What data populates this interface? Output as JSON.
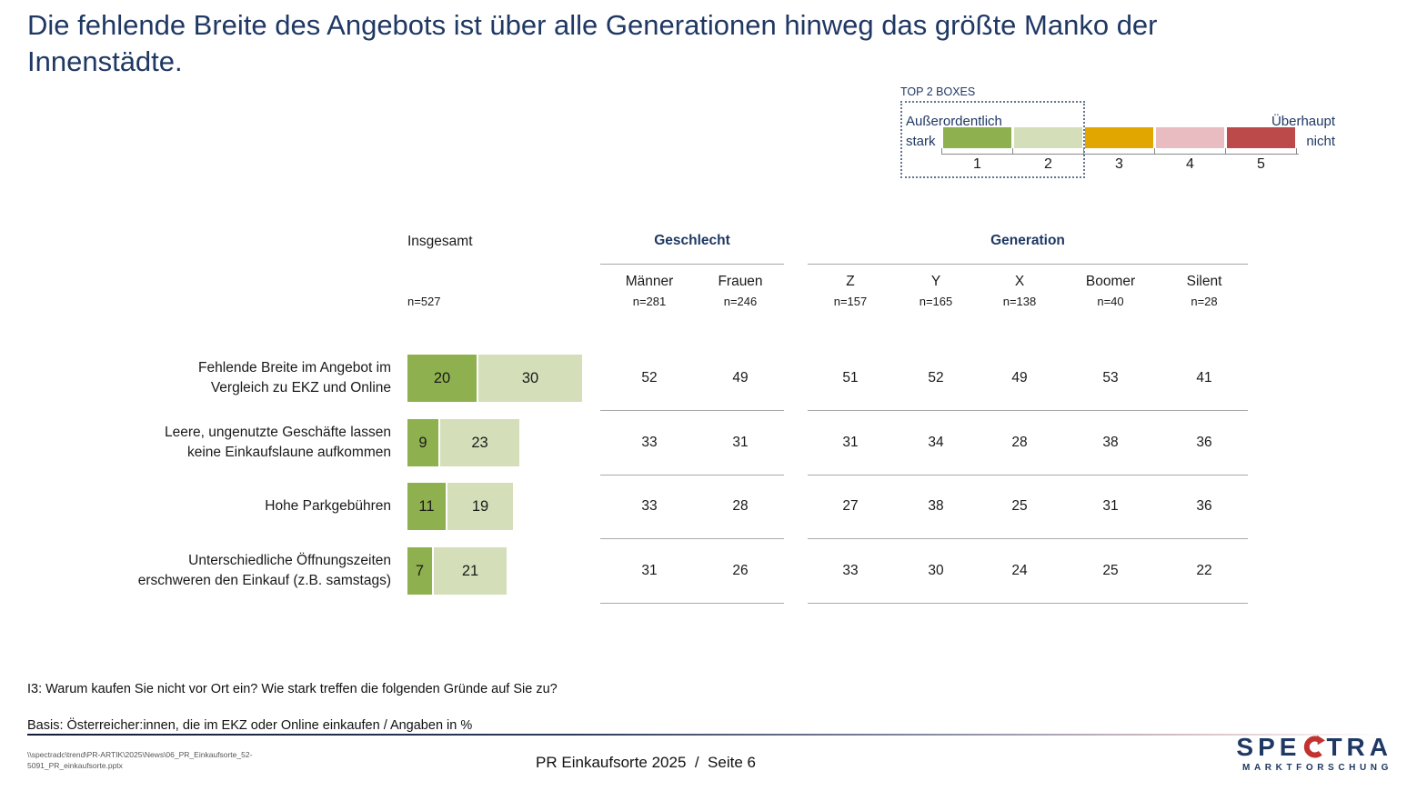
{
  "slide": {
    "title": "Die fehlende Breite des Angebots ist über alle Generationen hinweg das größte Manko der Innenstädte.",
    "footnote_question": "I3: Warum kaufen Sie nicht vor Ort ein? Wie stark treffen die folgenden Gründe auf Sie zu?",
    "footnote_basis": "Basis: Österreicher:innen, die im EKZ oder Online einkaufen / Angaben in %",
    "file_path_line1": "\\\\spectradc\\trend\\PR-ARTIK\\2025\\News\\06_PR_Einkaufsorte_52-",
    "file_path_line2": "5091_PR_einkaufsorte.pptx",
    "page_footer": "PR Einkaufsorte 2025  /  Seite 6",
    "logo": {
      "word_left": "SPE",
      "word_right": "TRA",
      "subtitle": "MARKTFORSCHUNG"
    }
  },
  "colors": {
    "navy": "#1F3864",
    "logo_red": "#C23230",
    "scale1_green": "#8FB04F",
    "scale2_light_green": "#D4DFB9",
    "scale3_gold": "#E2A600",
    "scale4_pink": "#E8BCC0",
    "scale5_red": "#BC4A4B"
  },
  "legend": {
    "title": "TOP 2 BOXES",
    "left_label": [
      "Außerordentlich",
      "stark"
    ],
    "right_label": [
      "Überhaupt",
      "nicht"
    ],
    "segments": [
      {
        "num": "1",
        "color": "#8FB04F"
      },
      {
        "num": "2",
        "color": "#D4DFB9"
      },
      {
        "num": "3",
        "color": "#E2A600"
      },
      {
        "num": "4",
        "color": "#E8BCC0"
      },
      {
        "num": "5",
        "color": "#BC4A4B"
      }
    ]
  },
  "table": {
    "insgesamt_label": "Insgesamt",
    "insgesamt_n": "n=527",
    "groups": [
      {
        "label": "Geschlecht",
        "columns": [
          {
            "name": "Männer",
            "n": "n=281"
          },
          {
            "name": "Frauen",
            "n": "n=246"
          }
        ]
      },
      {
        "label": "Generation",
        "columns": [
          {
            "name": "Z",
            "n": "n=157"
          },
          {
            "name": "Y",
            "n": "n=165"
          },
          {
            "name": "X",
            "n": "n=138"
          },
          {
            "name": "Boomer",
            "n": "n=40"
          },
          {
            "name": "Silent",
            "n": "n=28"
          }
        ]
      }
    ]
  },
  "chart_data": {
    "type": "bar",
    "orientation": "horizontal",
    "stacked": true,
    "title": "Die fehlende Breite des Angebots ist über alle Generationen hinweg das größte Manko der Innenstädte.",
    "legend_note": "TOP 2 BOXES",
    "scale_endpoints": {
      "1": "Außerordentlich stark",
      "5": "Überhaupt nicht"
    },
    "unit": "Angaben in %",
    "categories": [
      "Fehlende Breite im Angebot im Vergleich zu EKZ und Online",
      "Leere, ungenutzte Geschäfte lassen keine Einkaufslaune aufkommen",
      "Hohe Parkgebühren",
      "Unterschiedliche Öffnungszeiten erschweren den Einkauf (z.B. samstags)"
    ],
    "category_label_lines": [
      [
        "Fehlende Breite im Angebot im",
        "Vergleich zu EKZ und Online"
      ],
      [
        "Leere, ungenutzte Geschäfte lassen",
        "keine Einkaufslaune aufkommen"
      ],
      [
        "Hohe Parkgebühren"
      ],
      [
        "Unterschiedliche Öffnungszeiten",
        "erschweren den Einkauf (z.B. samstags)"
      ]
    ],
    "series": [
      {
        "name": "1",
        "values": [
          20,
          9,
          11,
          7
        ]
      },
      {
        "name": "2",
        "values": [
          30,
          23,
          19,
          21
        ]
      }
    ],
    "subgroup_values": {
      "columns": [
        "Männer",
        "Frauen",
        "Z",
        "Y",
        "X",
        "Boomer",
        "Silent"
      ],
      "column_n": [
        281,
        246,
        157,
        165,
        138,
        40,
        28
      ],
      "insgesamt_n": 527,
      "rows": [
        [
          52,
          49,
          51,
          52,
          49,
          53,
          41
        ],
        [
          33,
          31,
          31,
          34,
          28,
          38,
          36
        ],
        [
          33,
          28,
          27,
          38,
          25,
          31,
          36
        ],
        [
          31,
          26,
          33,
          30,
          24,
          25,
          22
        ]
      ]
    }
  }
}
